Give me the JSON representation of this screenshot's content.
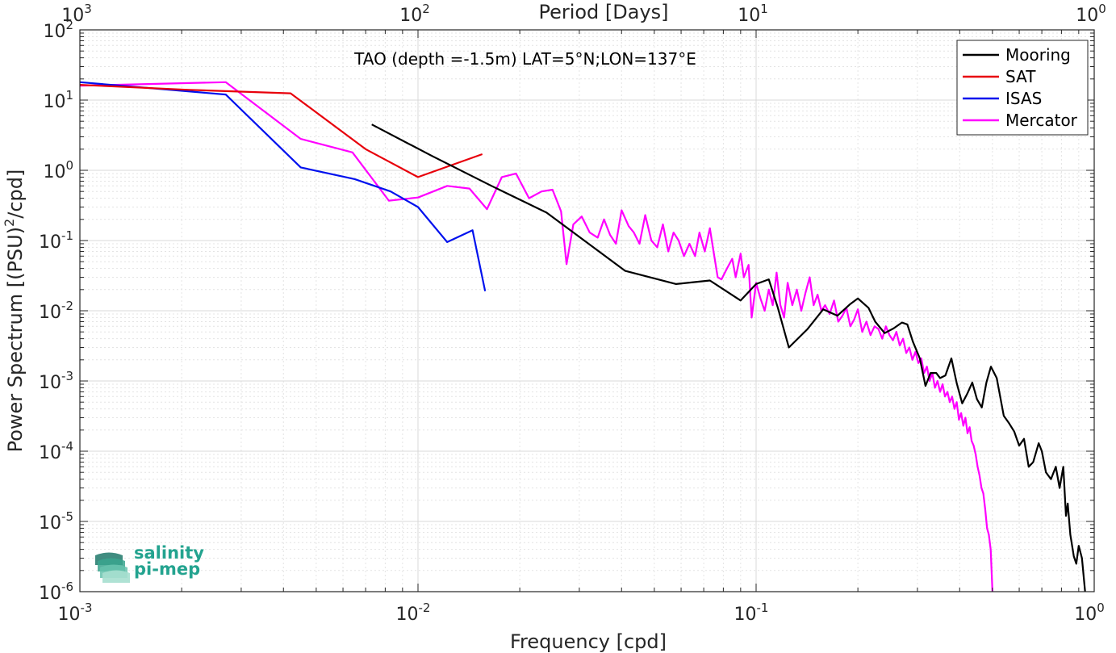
{
  "chart_data": {
    "type": "line",
    "annotation": "TAO (depth =-1.5m) LAT=5°N;LON=137°E",
    "xlabel": "Frequency [cpd]",
    "ylabel": "Power Spectrum [(PSU)^2/cpd]",
    "top_xlabel": "Period [Days]",
    "xscale": "log",
    "yscale": "log",
    "xlim": [
      0.001,
      1
    ],
    "ylim": [
      1e-06,
      100
    ],
    "grid": true,
    "legend_position": "top-right",
    "x_ticks": [
      {
        "value": 0.001,
        "base": "10",
        "exp": "-3"
      },
      {
        "value": 0.01,
        "base": "10",
        "exp": "-2"
      },
      {
        "value": 0.1,
        "base": "10",
        "exp": "-1"
      },
      {
        "value": 1,
        "base": "10",
        "exp": "0"
      }
    ],
    "top_ticks": [
      {
        "value": 0.001,
        "base": "10",
        "exp": "3"
      },
      {
        "value": 0.01,
        "base": "10",
        "exp": "2"
      },
      {
        "value": 0.1,
        "base": "10",
        "exp": "1"
      },
      {
        "value": 1,
        "base": "10",
        "exp": "0"
      }
    ],
    "y_ticks": [
      {
        "value": 1e-06,
        "base": "10",
        "exp": "-6"
      },
      {
        "value": 1e-05,
        "base": "10",
        "exp": "-5"
      },
      {
        "value": 0.0001,
        "base": "10",
        "exp": "-4"
      },
      {
        "value": 0.001,
        "base": "10",
        "exp": "-3"
      },
      {
        "value": 0.01,
        "base": "10",
        "exp": "-2"
      },
      {
        "value": 0.1,
        "base": "10",
        "exp": "-1"
      },
      {
        "value": 1,
        "base": "10",
        "exp": "0"
      },
      {
        "value": 10,
        "base": "10",
        "exp": "1"
      },
      {
        "value": 100,
        "base": "10",
        "exp": "2"
      }
    ],
    "series": [
      {
        "name": "Mooring",
        "color": "#000000",
        "points": [
          [
            0.0073,
            4.5
          ],
          [
            0.011,
            1.6
          ],
          [
            0.0165,
            0.6
          ],
          [
            0.024,
            0.25
          ],
          [
            0.041,
            0.037
          ],
          [
            0.058,
            0.024
          ],
          [
            0.073,
            0.027
          ],
          [
            0.09,
            0.014
          ],
          [
            0.1,
            0.024
          ],
          [
            0.109,
            0.028
          ],
          [
            0.116,
            0.011
          ],
          [
            0.125,
            0.003
          ],
          [
            0.142,
            0.0055
          ],
          [
            0.158,
            0.0105
          ],
          [
            0.174,
            0.0085
          ],
          [
            0.19,
            0.0125
          ],
          [
            0.2,
            0.015
          ],
          [
            0.215,
            0.011
          ],
          [
            0.225,
            0.007
          ],
          [
            0.24,
            0.0048
          ],
          [
            0.255,
            0.0056
          ],
          [
            0.27,
            0.0068
          ],
          [
            0.28,
            0.0064
          ],
          [
            0.291,
            0.0036
          ],
          [
            0.305,
            0.0021
          ],
          [
            0.317,
            0.00085
          ],
          [
            0.328,
            0.0013
          ],
          [
            0.341,
            0.0013
          ],
          [
            0.35,
            0.0011
          ],
          [
            0.363,
            0.0012
          ],
          [
            0.378,
            0.0021
          ],
          [
            0.392,
            0.00093
          ],
          [
            0.407,
            0.00048
          ],
          [
            0.422,
            0.00067
          ],
          [
            0.436,
            0.00095
          ],
          [
            0.45,
            0.00055
          ],
          [
            0.465,
            0.00042
          ],
          [
            0.48,
            0.00095
          ],
          [
            0.495,
            0.0016
          ],
          [
            0.515,
            0.0011
          ],
          [
            0.54,
            0.00032
          ],
          [
            0.56,
            0.00025
          ],
          [
            0.58,
            0.00019
          ],
          [
            0.6,
            0.00012
          ],
          [
            0.62,
            0.00015
          ],
          [
            0.64,
            6e-05
          ],
          [
            0.66,
            7e-05
          ],
          [
            0.685,
            0.00013
          ],
          [
            0.7,
            0.0001
          ],
          [
            0.72,
            5e-05
          ],
          [
            0.745,
            4e-05
          ],
          [
            0.77,
            6e-05
          ],
          [
            0.79,
            3e-05
          ],
          [
            0.81,
            6e-05
          ],
          [
            0.825,
            1.2e-05
          ],
          [
            0.835,
            1.8e-05
          ],
          [
            0.85,
            6.5e-06
          ],
          [
            0.87,
            3.2e-06
          ],
          [
            0.885,
            2.5e-06
          ],
          [
            0.9,
            4.5e-06
          ],
          [
            0.92,
            3e-06
          ],
          [
            0.94,
            1e-06
          ]
        ]
      },
      {
        "name": "SAT",
        "color": "#e8000b",
        "points": [
          [
            0.001,
            16.5
          ],
          [
            0.0021,
            14
          ],
          [
            0.0042,
            12.5
          ],
          [
            0.007,
            2.0
          ],
          [
            0.01,
            0.8
          ],
          [
            0.0155,
            1.7
          ]
        ]
      },
      {
        "name": "ISAS",
        "color": "#0011ee",
        "points": [
          [
            0.001,
            18
          ],
          [
            0.0027,
            12
          ],
          [
            0.0045,
            1.1
          ],
          [
            0.0065,
            0.75
          ],
          [
            0.0083,
            0.5
          ],
          [
            0.01,
            0.3
          ],
          [
            0.0122,
            0.095
          ],
          [
            0.0145,
            0.14
          ],
          [
            0.0158,
            0.019
          ]
        ]
      },
      {
        "name": "Mercator",
        "color": "#ff00ff",
        "points": [
          [
            0.001,
            16
          ],
          [
            0.0027,
            18
          ],
          [
            0.0045,
            2.8
          ],
          [
            0.0064,
            1.8
          ],
          [
            0.0082,
            0.37
          ],
          [
            0.01,
            0.41
          ],
          [
            0.0122,
            0.6
          ],
          [
            0.0142,
            0.55
          ],
          [
            0.016,
            0.28
          ],
          [
            0.0177,
            0.8
          ],
          [
            0.0195,
            0.9
          ],
          [
            0.0213,
            0.4
          ],
          [
            0.0232,
            0.5
          ],
          [
            0.025,
            0.53
          ],
          [
            0.0265,
            0.26
          ],
          [
            0.0275,
            0.046
          ],
          [
            0.0288,
            0.17
          ],
          [
            0.0305,
            0.22
          ],
          [
            0.0322,
            0.13
          ],
          [
            0.034,
            0.11
          ],
          [
            0.0355,
            0.2
          ],
          [
            0.037,
            0.12
          ],
          [
            0.0385,
            0.09
          ],
          [
            0.04,
            0.27
          ],
          [
            0.042,
            0.16
          ],
          [
            0.0435,
            0.13
          ],
          [
            0.0452,
            0.09
          ],
          [
            0.047,
            0.23
          ],
          [
            0.049,
            0.1
          ],
          [
            0.051,
            0.08
          ],
          [
            0.053,
            0.17
          ],
          [
            0.055,
            0.07
          ],
          [
            0.057,
            0.13
          ],
          [
            0.059,
            0.1
          ],
          [
            0.0612,
            0.06
          ],
          [
            0.0635,
            0.09
          ],
          [
            0.066,
            0.06
          ],
          [
            0.068,
            0.13
          ],
          [
            0.0705,
            0.07
          ],
          [
            0.073,
            0.15
          ],
          [
            0.075,
            0.065
          ],
          [
            0.077,
            0.03
          ],
          [
            0.079,
            0.028
          ],
          [
            0.082,
            0.04
          ],
          [
            0.085,
            0.055
          ],
          [
            0.087,
            0.03
          ],
          [
            0.09,
            0.065
          ],
          [
            0.092,
            0.03
          ],
          [
            0.095,
            0.045
          ],
          [
            0.097,
            0.008
          ],
          [
            0.1,
            0.025
          ],
          [
            0.103,
            0.015
          ],
          [
            0.106,
            0.01
          ],
          [
            0.109,
            0.02
          ],
          [
            0.112,
            0.012
          ],
          [
            0.115,
            0.035
          ],
          [
            0.118,
            0.012
          ],
          [
            0.121,
            0.008
          ],
          [
            0.124,
            0.025
          ],
          [
            0.128,
            0.012
          ],
          [
            0.132,
            0.02
          ],
          [
            0.136,
            0.01
          ],
          [
            0.14,
            0.018
          ],
          [
            0.144,
            0.03
          ],
          [
            0.148,
            0.012
          ],
          [
            0.152,
            0.017
          ],
          [
            0.156,
            0.01
          ],
          [
            0.16,
            0.012
          ],
          [
            0.165,
            0.009
          ],
          [
            0.17,
            0.014
          ],
          [
            0.175,
            0.007
          ],
          [
            0.18,
            0.0085
          ],
          [
            0.185,
            0.011
          ],
          [
            0.19,
            0.006
          ],
          [
            0.195,
            0.0075
          ],
          [
            0.2,
            0.0105
          ],
          [
            0.206,
            0.005
          ],
          [
            0.212,
            0.007
          ],
          [
            0.218,
            0.0045
          ],
          [
            0.224,
            0.006
          ],
          [
            0.23,
            0.0055
          ],
          [
            0.236,
            0.004
          ],
          [
            0.242,
            0.006
          ],
          [
            0.248,
            0.0045
          ],
          [
            0.254,
            0.0038
          ],
          [
            0.26,
            0.005
          ],
          [
            0.266,
            0.0032
          ],
          [
            0.272,
            0.004
          ],
          [
            0.278,
            0.0025
          ],
          [
            0.284,
            0.003
          ],
          [
            0.29,
            0.002
          ],
          [
            0.296,
            0.0026
          ],
          [
            0.302,
            0.0018
          ],
          [
            0.308,
            0.0021
          ],
          [
            0.314,
            0.0013
          ],
          [
            0.32,
            0.0016
          ],
          [
            0.326,
            0.001
          ],
          [
            0.332,
            0.0013
          ],
          [
            0.338,
            0.0008
          ],
          [
            0.344,
            0.001
          ],
          [
            0.35,
            0.0007
          ],
          [
            0.356,
            0.0009
          ],
          [
            0.362,
            0.0006
          ],
          [
            0.368,
            0.0007
          ],
          [
            0.374,
            0.0005
          ],
          [
            0.38,
            0.0006
          ],
          [
            0.386,
            0.0004
          ],
          [
            0.392,
            0.0005
          ],
          [
            0.398,
            0.00028
          ],
          [
            0.404,
            0.00035
          ],
          [
            0.41,
            0.00023
          ],
          [
            0.416,
            0.0003
          ],
          [
            0.422,
            0.00018
          ],
          [
            0.428,
            0.00022
          ],
          [
            0.434,
            0.00014
          ],
          [
            0.44,
            0.00012
          ],
          [
            0.446,
            9e-05
          ],
          [
            0.452,
            6e-05
          ],
          [
            0.458,
            4.5e-05
          ],
          [
            0.464,
            3e-05
          ],
          [
            0.47,
            2.5e-05
          ],
          [
            0.476,
            1.5e-05
          ],
          [
            0.482,
            8e-06
          ],
          [
            0.488,
            6.5e-06
          ],
          [
            0.494,
            4e-06
          ],
          [
            0.5,
            1e-06
          ]
        ]
      }
    ]
  },
  "logo": {
    "line1": "salinity",
    "line2": "pi-mep"
  }
}
